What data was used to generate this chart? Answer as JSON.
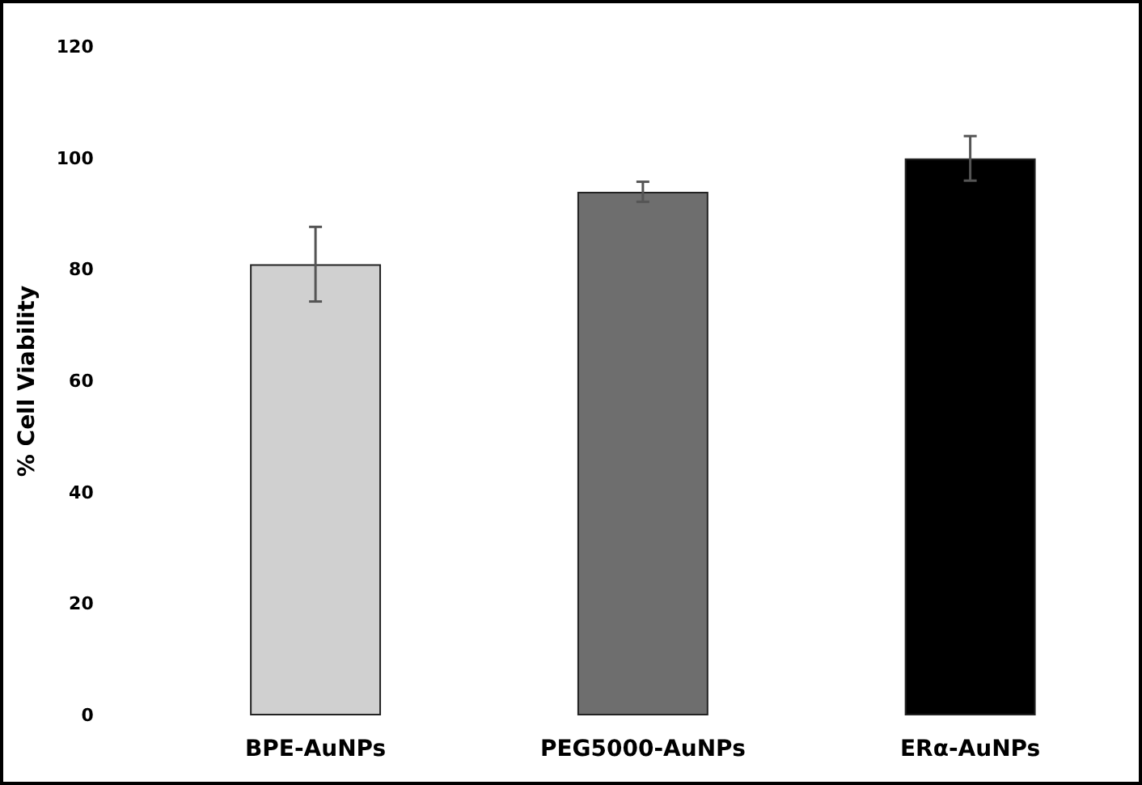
{
  "chart_data": {
    "type": "bar",
    "ylabel": "% Cell Viability",
    "categories": [
      "BPE-AuNPs",
      "PEG5000-AuNPs",
      "ERα-AuNPs"
    ],
    "values": [
      81,
      94,
      100
    ],
    "errors": [
      6.7,
      1.8,
      4
    ],
    "colors": [
      "#d0d0d0",
      "#6e6e6e",
      "#000000"
    ],
    "ylim": [
      0,
      120
    ],
    "yticks": [
      0,
      20,
      40,
      60,
      80,
      100,
      120
    ],
    "grid": false
  }
}
